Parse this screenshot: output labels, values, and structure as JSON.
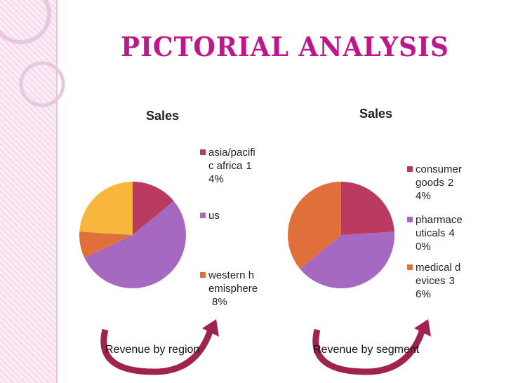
{
  "title": "PICTORIAL ANALYSIS",
  "chart_data": [
    {
      "type": "pie",
      "title": "Sales",
      "caption": "Revenue by region",
      "categories": [
        "asia/pacific africa",
        "us",
        "western hemisphere",
        null
      ],
      "values": [
        14,
        54,
        8,
        24
      ],
      "value_labels": [
        "14%",
        null,
        "8%",
        null
      ],
      "colors": [
        "#b83a5f",
        "#a668c0",
        "#e0703a",
        "#f6b73c"
      ]
    },
    {
      "type": "pie",
      "title": "Sales",
      "caption": "Revenue by segment",
      "categories": [
        "consumer goods",
        "pharmaceuticals",
        "medical devices"
      ],
      "values": [
        24,
        40,
        36
      ],
      "value_labels": [
        "24%",
        "40%",
        "36%"
      ],
      "colors": [
        "#b83a5f",
        "#a668c0",
        "#e0703a"
      ]
    }
  ]
}
